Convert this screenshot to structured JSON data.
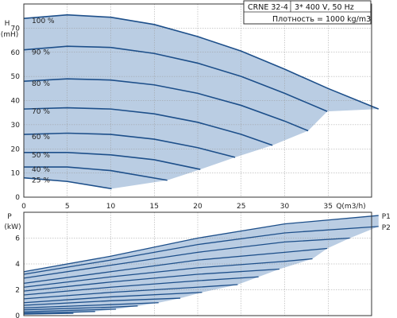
{
  "header": {
    "model": "CRNE 32-4",
    "supply": "3* 400 V, 50 Hz",
    "density": "Плотность = 1000 kg/m3"
  },
  "colors": {
    "curve": "#1d4f8a",
    "fill": "#bacde3",
    "grid": "#9a9a9a",
    "frame": "#333333"
  },
  "chart_data": [
    {
      "type": "line",
      "ylabel": "H",
      "yunit": "(mH)",
      "xlabel": "Q(m3/h)",
      "xlim": [
        0,
        40
      ],
      "ylim": [
        0,
        80
      ],
      "xticks": [
        0,
        5,
        10,
        15,
        20,
        25,
        30,
        35
      ],
      "yticks": [
        0,
        10,
        20,
        30,
        40,
        50,
        60,
        70
      ],
      "grid": true,
      "series": [
        {
          "name": "100 %",
          "x": [
            0,
            5,
            10,
            15,
            20,
            25,
            30,
            35,
            40.8
          ],
          "y": [
            74,
            75.5,
            74.5,
            71.5,
            66.5,
            60.5,
            53,
            45,
            36.5
          ]
        },
        {
          "name": "90 %",
          "x": [
            0,
            5,
            10,
            15,
            20,
            25,
            30,
            34.9
          ],
          "y": [
            61,
            62.5,
            62,
            59.5,
            55.5,
            50,
            43,
            35.5
          ]
        },
        {
          "name": "80 %",
          "x": [
            0,
            5,
            10,
            15,
            20,
            25,
            30,
            32.7
          ],
          "y": [
            48,
            49,
            48.5,
            46.5,
            43,
            38,
            31.5,
            27.5
          ]
        },
        {
          "name": "70 %",
          "x": [
            0,
            5,
            10,
            15,
            20,
            25,
            28.6
          ],
          "y": [
            36.5,
            37,
            36.5,
            34.5,
            31,
            26,
            21.5
          ]
        },
        {
          "name": "60 %",
          "x": [
            0,
            5,
            10,
            15,
            20,
            24.3
          ],
          "y": [
            26,
            26.5,
            26,
            24,
            20.5,
            16.5
          ]
        },
        {
          "name": "50 %",
          "x": [
            0,
            5,
            10,
            15,
            20.3
          ],
          "y": [
            18.5,
            18.5,
            17.5,
            15.5,
            11.5
          ]
        },
        {
          "name": "40 %",
          "x": [
            0,
            5,
            10,
            16.5
          ],
          "y": [
            12.5,
            12.5,
            11,
            7
          ]
        },
        {
          "name": "25 %",
          "x": [
            0,
            5,
            10.1
          ],
          "y": [
            8,
            6.5,
            3.5
          ]
        }
      ]
    },
    {
      "type": "line",
      "ylabel": "P",
      "yunit": "(kW)",
      "xlim": [
        0,
        40
      ],
      "ylim": [
        0,
        8
      ],
      "yticks": [
        0,
        2,
        4,
        6
      ],
      "grid": true,
      "series": [
        {
          "name": "P1",
          "x": [
            0,
            10,
            20,
            30,
            40.8
          ],
          "y": [
            3.4,
            4.6,
            6.0,
            7.1,
            7.75
          ]
        },
        {
          "name": "P2",
          "x": [
            0,
            10,
            20,
            30,
            40.8
          ],
          "y": [
            3.2,
            4.3,
            5.5,
            6.4,
            6.9
          ]
        },
        {
          "x": [
            0,
            10,
            20,
            30,
            37.5
          ],
          "y": [
            2.9,
            3.9,
            4.9,
            5.7,
            6.0
          ]
        },
        {
          "x": [
            0,
            10,
            20,
            30,
            34.9
          ],
          "y": [
            2.5,
            3.4,
            4.3,
            4.9,
            5.2
          ]
        },
        {
          "x": [
            0,
            10,
            20,
            30,
            33.2
          ],
          "y": [
            2.2,
            3.0,
            3.7,
            4.2,
            4.4
          ]
        },
        {
          "x": [
            0,
            10,
            20,
            29.4
          ],
          "y": [
            1.9,
            2.6,
            3.2,
            3.6
          ]
        },
        {
          "x": [
            0,
            10,
            20,
            27.0
          ],
          "y": [
            1.6,
            2.2,
            2.7,
            3.0
          ]
        },
        {
          "x": [
            0,
            10,
            20,
            24.6
          ],
          "y": [
            1.3,
            1.8,
            2.2,
            2.4
          ]
        },
        {
          "x": [
            0,
            10,
            20.5
          ],
          "y": [
            1.0,
            1.45,
            1.8
          ]
        },
        {
          "x": [
            0,
            10,
            18.0
          ],
          "y": [
            0.8,
            1.15,
            1.35
          ]
        },
        {
          "x": [
            0,
            10,
            15.5
          ],
          "y": [
            0.6,
            0.85,
            1.0
          ]
        },
        {
          "x": [
            0,
            10,
            13.1
          ],
          "y": [
            0.45,
            0.65,
            0.75
          ]
        },
        {
          "x": [
            0,
            5,
            10.6
          ],
          "y": [
            0.3,
            0.4,
            0.5
          ]
        },
        {
          "x": [
            0,
            5,
            8.2
          ],
          "y": [
            0.2,
            0.27,
            0.32
          ]
        },
        {
          "x": [
            0,
            5.7
          ],
          "y": [
            0.12,
            0.18
          ]
        }
      ]
    }
  ]
}
